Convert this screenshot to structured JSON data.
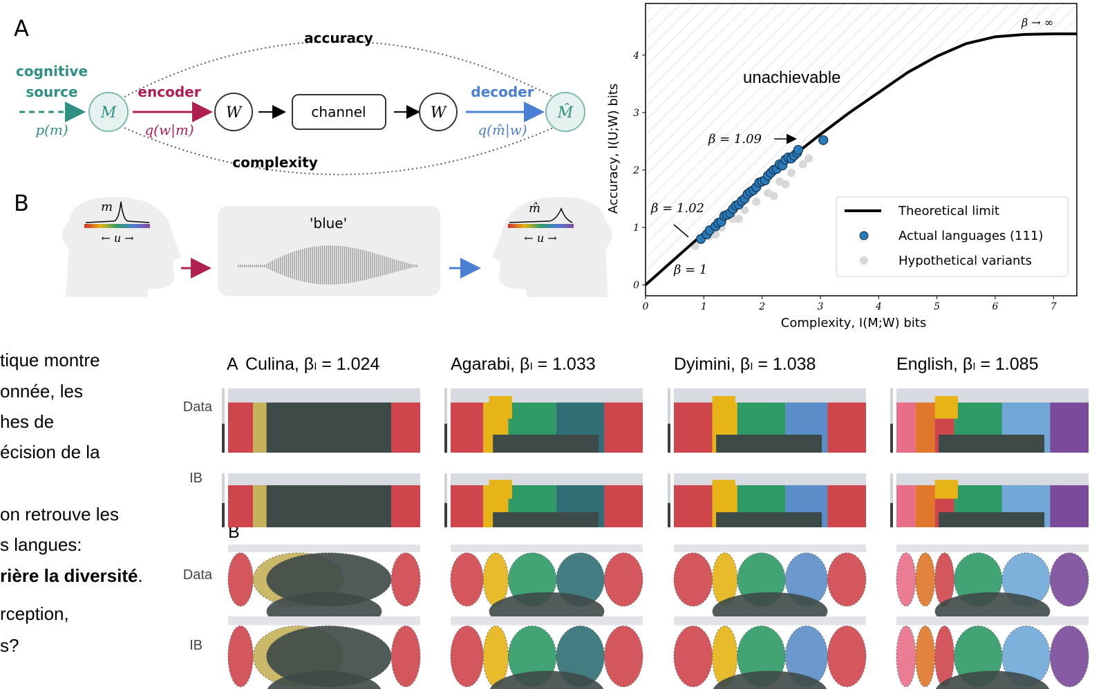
{
  "diagram": {
    "panel_a": "A",
    "source_1": "cognitive",
    "source_2": "source",
    "p_m": "p(m)",
    "m_node": "M",
    "encoder": "encoder",
    "q_wm": "q(w|m)",
    "w_node": "W",
    "channel": "channel",
    "w_node_2": "W",
    "decoder": "decoder",
    "q_mw": "q(m̂|w)",
    "m_hat_node": "M̂",
    "accuracy": "accuracy",
    "complexity": "complexity",
    "panel_b": "B",
    "m_label": "m",
    "u_axis": "← u →",
    "word": "'blue'",
    "m_hat_label": "m̂",
    "u_axis_2": "← u →"
  },
  "chart_data": {
    "type": "line",
    "xlabel": "Complexity, I(M;W) bits",
    "ylabel": "Accuracy, I(U;W) bits",
    "xlim": [
      0,
      7.4
    ],
    "ylim": [
      -0.19,
      4.9
    ],
    "xticks": [
      0,
      1,
      2,
      3,
      4,
      5,
      6,
      7
    ],
    "yticks": [
      0,
      1,
      2,
      3,
      4
    ],
    "legend": "lower right",
    "annotations": [
      "unachievable",
      "β = 1.09",
      "β = 1.02",
      "β = 1",
      "β → ∞"
    ],
    "series": [
      {
        "name": "Theoretical limit",
        "color": "#000000",
        "style": "line",
        "x": [
          0,
          0.5,
          1,
          1.5,
          2,
          2.5,
          3,
          3.5,
          4,
          4.5,
          5,
          5.5,
          6,
          6.5,
          7,
          7.4
        ],
        "values": [
          0,
          0.45,
          0.9,
          1.35,
          1.8,
          2.22,
          2.62,
          3.0,
          3.35,
          3.7,
          3.98,
          4.2,
          4.32,
          4.36,
          4.37,
          4.37
        ]
      },
      {
        "name": "Actual languages (111)",
        "color": "#2a7ab8",
        "style": "scatter",
        "x": [
          0.95,
          1.05,
          1.1,
          1.2,
          1.25,
          1.3,
          1.35,
          1.4,
          1.45,
          1.5,
          1.55,
          1.6,
          1.65,
          1.7,
          1.75,
          1.8,
          1.85,
          1.9,
          1.95,
          2.0,
          2.05,
          2.1,
          2.15,
          2.2,
          2.25,
          2.3,
          2.35,
          2.4,
          2.45,
          2.5,
          2.55,
          2.6,
          2.62,
          3.05
        ],
        "values": [
          0.8,
          0.88,
          0.95,
          1.02,
          1.08,
          1.1,
          1.2,
          1.22,
          1.25,
          1.32,
          1.38,
          1.4,
          1.46,
          1.5,
          1.58,
          1.62,
          1.65,
          1.7,
          1.78,
          1.8,
          1.82,
          1.9,
          1.95,
          2.0,
          2.02,
          2.1,
          2.08,
          2.18,
          2.22,
          2.2,
          2.25,
          2.3,
          2.35,
          2.52
        ]
      },
      {
        "name": "Hypothetical variants",
        "color": "#d8d8d8",
        "style": "scatter",
        "x": [
          0.85,
          1.1,
          1.3,
          1.5,
          1.7,
          1.9,
          2.1,
          2.3,
          2.5,
          2.7,
          2.2,
          1.6,
          2.8,
          2.4,
          1.2
        ],
        "values": [
          0.68,
          0.85,
          1.0,
          1.15,
          1.3,
          1.45,
          1.6,
          1.8,
          1.95,
          2.1,
          1.55,
          1.15,
          2.2,
          1.75,
          0.88
        ]
      }
    ]
  },
  "text": {
    "lines": [
      "tique montre",
      "onnée, les",
      "hes de",
      "écision de la",
      "on retrouve les",
      "s langues:"
    ],
    "bold": "rière la diversité",
    "bold_tail": ".",
    "lines_after": [
      "rception,",
      "s?"
    ]
  },
  "grid": {
    "panel_a": "A",
    "panel_b": "B",
    "columns": [
      "Culina, βₗ = 1.024",
      "Agarabi, βₗ = 1.033",
      "Dyimini, βₗ = 1.038",
      "English, βₗ = 1.085"
    ],
    "rows": [
      "Data",
      "IB",
      "Data",
      "IB"
    ]
  }
}
